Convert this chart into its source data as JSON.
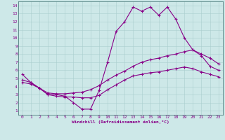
{
  "xlabel": "Windchill (Refroidissement éolien,°C)",
  "bg_color": "#cde8e8",
  "line_color": "#880088",
  "grid_color": "#aacece",
  "spine_color": "#336666",
  "xlim": [
    -0.5,
    23.5
  ],
  "ylim": [
    0.5,
    14.5
  ],
  "xticks": [
    0,
    1,
    2,
    3,
    4,
    5,
    6,
    7,
    8,
    9,
    10,
    11,
    12,
    13,
    14,
    15,
    16,
    17,
    18,
    19,
    20,
    21,
    22,
    23
  ],
  "yticks": [
    1,
    2,
    3,
    4,
    5,
    6,
    7,
    8,
    9,
    10,
    11,
    12,
    13,
    14
  ],
  "line1_x": [
    0,
    1,
    2,
    3,
    4,
    5,
    6,
    7,
    8,
    9,
    10,
    11,
    12,
    13,
    14,
    15,
    16,
    17,
    18,
    19,
    20,
    21,
    22,
    23
  ],
  "line1_y": [
    5.5,
    4.5,
    3.8,
    3.0,
    3.0,
    2.8,
    2.0,
    1.2,
    1.2,
    3.5,
    7.0,
    10.8,
    12.0,
    13.8,
    13.3,
    13.8,
    12.8,
    13.8,
    12.3,
    10.0,
    8.5,
    7.8,
    6.5,
    6.0
  ],
  "line2_x": [
    0,
    1,
    2,
    3,
    4,
    5,
    6,
    7,
    8,
    9,
    10,
    11,
    12,
    13,
    14,
    15,
    16,
    17,
    18,
    19,
    20,
    21,
    22,
    23
  ],
  "line2_y": [
    4.8,
    4.5,
    3.8,
    3.2,
    3.1,
    3.1,
    3.2,
    3.3,
    3.6,
    4.1,
    4.8,
    5.4,
    5.9,
    6.5,
    7.0,
    7.3,
    7.5,
    7.8,
    8.0,
    8.3,
    8.5,
    8.0,
    7.5,
    6.8
  ],
  "line3_x": [
    0,
    1,
    2,
    3,
    4,
    5,
    6,
    7,
    8,
    9,
    10,
    11,
    12,
    13,
    14,
    15,
    16,
    17,
    18,
    19,
    20,
    21,
    22,
    23
  ],
  "line3_y": [
    4.5,
    4.3,
    3.8,
    3.0,
    2.8,
    2.7,
    2.7,
    2.6,
    2.6,
    2.9,
    3.6,
    4.2,
    4.8,
    5.3,
    5.5,
    5.7,
    5.8,
    6.0,
    6.2,
    6.4,
    6.2,
    5.8,
    5.5,
    5.2
  ]
}
